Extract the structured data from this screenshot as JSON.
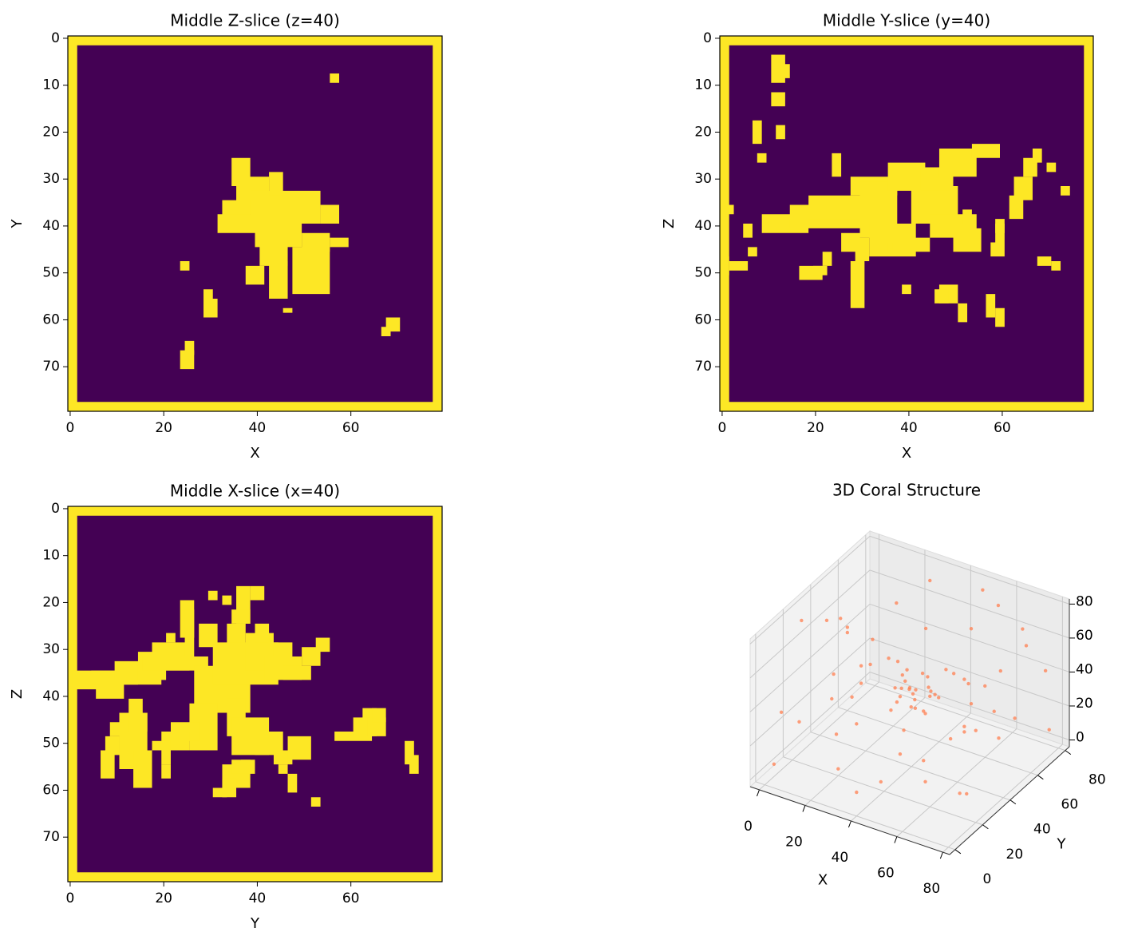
{
  "chart_data": [
    {
      "type": "image",
      "title": "Middle Z-slice (z=40)",
      "xlabel": "X",
      "ylabel": "Y",
      "xlim": [
        -0.5,
        79.5
      ],
      "ylim": [
        79.5,
        -0.5
      ],
      "xticks": [
        0,
        20,
        40,
        60
      ],
      "yticks": [
        0,
        10,
        20,
        30,
        40,
        50,
        60,
        70
      ],
      "colors": {
        "frame": "#fde725",
        "interior": "#440154",
        "fill": "#fde725"
      },
      "interior": [
        2,
        2,
        76,
        76
      ],
      "regions": [
        [
          56,
          8,
          2,
          2
        ],
        [
          35,
          26,
          4,
          6
        ],
        [
          36,
          30,
          7,
          8
        ],
        [
          33,
          35,
          6,
          6
        ],
        [
          32,
          38,
          8,
          4
        ],
        [
          39,
          33,
          15,
          7
        ],
        [
          43,
          29,
          3,
          5
        ],
        [
          54,
          36,
          4,
          4
        ],
        [
          40,
          40,
          10,
          5
        ],
        [
          41,
          44,
          6,
          5
        ],
        [
          43,
          48,
          4,
          8
        ],
        [
          38,
          49,
          4,
          4
        ],
        [
          48,
          45,
          8,
          10
        ],
        [
          50,
          42,
          6,
          4
        ],
        [
          56,
          43,
          4,
          2
        ],
        [
          46,
          58,
          2,
          1
        ],
        [
          24,
          48,
          2,
          2
        ],
        [
          29,
          54,
          2,
          2
        ],
        [
          29,
          56,
          3,
          4
        ],
        [
          24,
          67,
          3,
          4
        ],
        [
          25,
          65,
          2,
          3
        ],
        [
          67,
          62,
          2,
          2
        ],
        [
          68,
          60,
          3,
          3
        ]
      ]
    },
    {
      "type": "image",
      "title": "Middle Y-slice (y=40)",
      "xlabel": "X",
      "ylabel": "Z",
      "xlim": [
        -0.5,
        79.5
      ],
      "ylim": [
        79.5,
        -0.5
      ],
      "xticks": [
        0,
        20,
        40,
        60
      ],
      "yticks": [
        0,
        10,
        20,
        30,
        40,
        50,
        60,
        70
      ],
      "colors": {
        "frame": "#fde725",
        "interior": "#440154",
        "fill": "#fde725"
      },
      "interior": [
        2,
        2,
        76,
        76
      ],
      "regions": [
        [
          11,
          4,
          3,
          6
        ],
        [
          13,
          6,
          2,
          3
        ],
        [
          11,
          12,
          3,
          3
        ],
        [
          7,
          18,
          2,
          5
        ],
        [
          12,
          19,
          2,
          3
        ],
        [
          8,
          25,
          2,
          2
        ],
        [
          1,
          36,
          2,
          2
        ],
        [
          1,
          47,
          1,
          4
        ],
        [
          2,
          48,
          4,
          2
        ],
        [
          5,
          40,
          2,
          3
        ],
        [
          6,
          45,
          2,
          2
        ],
        [
          9,
          38,
          10,
          4
        ],
        [
          15,
          36,
          15,
          5
        ],
        [
          19,
          34,
          18,
          5
        ],
        [
          24,
          25,
          2,
          5
        ],
        [
          28,
          30,
          10,
          4
        ],
        [
          30,
          31,
          8,
          12
        ],
        [
          32,
          40,
          10,
          7
        ],
        [
          29,
          43,
          3,
          5
        ],
        [
          26,
          42,
          4,
          4
        ],
        [
          28,
          48,
          3,
          10
        ],
        [
          22,
          46,
          2,
          3
        ],
        [
          17,
          49,
          5,
          3
        ],
        [
          20,
          49,
          3,
          2
        ],
        [
          36,
          27,
          8,
          6
        ],
        [
          41,
          32,
          10,
          8
        ],
        [
          43,
          28,
          7,
          5
        ],
        [
          47,
          24,
          8,
          6
        ],
        [
          54,
          23,
          6,
          3
        ],
        [
          45,
          38,
          10,
          5
        ],
        [
          41,
          43,
          4,
          3
        ],
        [
          36,
          44,
          1,
          2
        ],
        [
          52,
          37,
          2,
          3
        ],
        [
          59,
          39,
          2,
          3
        ],
        [
          63,
          30,
          4,
          5
        ],
        [
          62,
          34,
          3,
          5
        ],
        [
          65,
          26,
          3,
          4
        ],
        [
          67,
          24,
          2,
          3
        ],
        [
          70,
          27,
          2,
          2
        ],
        [
          73,
          32,
          2,
          2
        ],
        [
          50,
          41,
          6,
          5
        ],
        [
          58,
          44,
          3,
          3
        ],
        [
          59,
          40,
          2,
          4
        ],
        [
          47,
          53,
          4,
          4
        ],
        [
          46,
          54,
          3,
          3
        ],
        [
          39,
          53,
          2,
          2
        ],
        [
          51,
          57,
          2,
          4
        ],
        [
          57,
          55,
          2,
          5
        ],
        [
          59,
          58,
          2,
          4
        ],
        [
          68,
          47,
          3,
          2
        ],
        [
          71,
          48,
          2,
          2
        ]
      ]
    },
    {
      "type": "image",
      "title": "Middle X-slice (x=40)",
      "xlabel": "Y",
      "ylabel": "Z",
      "xlim": [
        -0.5,
        79.5
      ],
      "ylim": [
        79.5,
        -0.5
      ],
      "xticks": [
        0,
        20,
        40,
        60
      ],
      "yticks": [
        0,
        10,
        20,
        30,
        40,
        50,
        60,
        70
      ],
      "colors": {
        "frame": "#fde725",
        "interior": "#440154",
        "fill": "#fde725"
      },
      "interior": [
        2,
        2,
        76,
        76
      ],
      "regions": [
        [
          1,
          35,
          10,
          4
        ],
        [
          5,
          35,
          10,
          3
        ],
        [
          10,
          33,
          10,
          5
        ],
        [
          15,
          31,
          6,
          6
        ],
        [
          6,
          37,
          6,
          4
        ],
        [
          18,
          29,
          8,
          6
        ],
        [
          16,
          32,
          14,
          3
        ],
        [
          24,
          20,
          3,
          8
        ],
        [
          25,
          22,
          2,
          10
        ],
        [
          28,
          25,
          4,
          5
        ],
        [
          21,
          27,
          2,
          2
        ],
        [
          36,
          17,
          3,
          8
        ],
        [
          30,
          18,
          2,
          2
        ],
        [
          33,
          19,
          2,
          2
        ],
        [
          39,
          17,
          3,
          3
        ],
        [
          34,
          25,
          4,
          7
        ],
        [
          35,
          22,
          4,
          3
        ],
        [
          27,
          34,
          12,
          10
        ],
        [
          31,
          29,
          14,
          9
        ],
        [
          38,
          27,
          6,
          8
        ],
        [
          40,
          25,
          3,
          4
        ],
        [
          44,
          29,
          4,
          5
        ],
        [
          42,
          32,
          8,
          5
        ],
        [
          50,
          30,
          4,
          4
        ],
        [
          53,
          28,
          3,
          3
        ],
        [
          46,
          34,
          6,
          3
        ],
        [
          26,
          42,
          6,
          10
        ],
        [
          22,
          46,
          6,
          4
        ],
        [
          20,
          48,
          6,
          4
        ],
        [
          18,
          50,
          4,
          2
        ],
        [
          34,
          41,
          4,
          8
        ],
        [
          35,
          45,
          8,
          8
        ],
        [
          40,
          48,
          6,
          5
        ],
        [
          44,
          52,
          4,
          3
        ],
        [
          37,
          54,
          3,
          3
        ],
        [
          47,
          49,
          5,
          5
        ],
        [
          13,
          41,
          3,
          13
        ],
        [
          11,
          44,
          6,
          12
        ],
        [
          14,
          52,
          4,
          8
        ],
        [
          9,
          46,
          3,
          3
        ],
        [
          8,
          49,
          3,
          4
        ],
        [
          7,
          52,
          3,
          6
        ],
        [
          13,
          44,
          4,
          4
        ],
        [
          20,
          52,
          2,
          3
        ],
        [
          20,
          55,
          2,
          3
        ],
        [
          33,
          55,
          6,
          5
        ],
        [
          35,
          54,
          4,
          3
        ],
        [
          33,
          58,
          3,
          4
        ],
        [
          31,
          60,
          3,
          2
        ],
        [
          45,
          55,
          2,
          2
        ],
        [
          47,
          57,
          2,
          4
        ],
        [
          52,
          62,
          2,
          2
        ],
        [
          62,
          47,
          2,
          2
        ],
        [
          57,
          48,
          8,
          2
        ],
        [
          63,
          43,
          3,
          6
        ],
        [
          64,
          45,
          4,
          4
        ],
        [
          65,
          43,
          3,
          3
        ],
        [
          72,
          50,
          2,
          5
        ],
        [
          73,
          53,
          2,
          4
        ],
        [
          61,
          45,
          3,
          4
        ]
      ]
    },
    {
      "type": "scatter3d",
      "title": "3D Coral Structure",
      "xlabel": "X",
      "ylabel": "Y",
      "xlim": [
        -4,
        83
      ],
      "ylim": [
        -4,
        83
      ],
      "zlim": [
        -4,
        83
      ],
      "xticks": [
        0,
        20,
        40,
        60,
        80
      ],
      "yticks": [
        0,
        20,
        40,
        60,
        80
      ],
      "zticks": [
        0,
        20,
        40,
        60,
        80
      ],
      "color": "#ff7f50",
      "x": [
        0,
        0,
        0,
        1,
        0,
        1,
        79,
        79,
        78,
        79,
        79,
        78,
        15,
        40,
        60,
        30,
        70,
        50,
        10,
        35,
        55,
        75,
        25,
        65,
        20,
        45,
        70,
        10,
        60,
        35,
        15,
        40,
        60,
        30,
        75,
        50,
        38,
        42,
        45,
        36,
        40,
        44,
        48,
        33,
        41,
        39,
        46,
        35,
        43,
        37,
        50,
        42,
        38,
        47,
        34,
        44,
        20,
        25,
        55,
        60,
        30,
        65,
        15,
        50,
        28,
        58,
        22,
        68,
        12,
        72,
        33,
        48,
        18,
        62,
        26,
        54
      ],
      "y": [
        12,
        45,
        70,
        25,
        60,
        5,
        10,
        35,
        60,
        75,
        50,
        20,
        0,
        0,
        1,
        0,
        0,
        1,
        79,
        79,
        78,
        79,
        79,
        79,
        20,
        60,
        30,
        50,
        70,
        40,
        30,
        10,
        50,
        70,
        20,
        75,
        42,
        39,
        44,
        36,
        48,
        33,
        40,
        45,
        41,
        37,
        47,
        41,
        38,
        46,
        43,
        35,
        40,
        37,
        38,
        45,
        30,
        55,
        25,
        60,
        20,
        45,
        65,
        15,
        45,
        35,
        12,
        58,
        40,
        25,
        62,
        68,
        22,
        12,
        35,
        55
      ],
      "z": [
        30,
        60,
        15,
        75,
        45,
        5,
        20,
        50,
        70,
        10,
        35,
        65,
        40,
        10,
        55,
        75,
        30,
        20,
        50,
        20,
        70,
        40,
        5,
        60,
        0,
        0,
        1,
        0,
        0,
        1,
        79,
        78,
        79,
        79,
        78,
        79,
        40,
        37,
        42,
        35,
        45,
        38,
        41,
        43,
        30,
        48,
        36,
        39,
        44,
        33,
        39,
        46,
        52,
        34,
        41,
        47,
        35,
        40,
        45,
        38,
        55,
        25,
        30,
        60,
        20,
        65,
        48,
        52,
        62,
        42,
        58,
        28,
        18,
        30,
        68,
        15
      ]
    }
  ]
}
